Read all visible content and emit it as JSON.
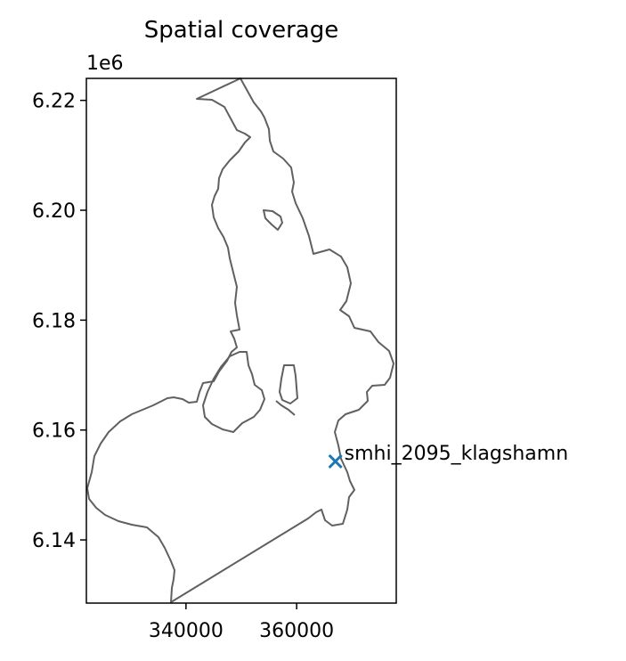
{
  "chart_data": {
    "type": "map-scatter",
    "title": "Spatial coverage",
    "xlabel": "",
    "ylabel": "",
    "offset_label": "1e6",
    "xlim": [
      322000,
      378000
    ],
    "ylim": [
      6128500,
      6224000
    ],
    "x_ticks": [
      {
        "value": 340000,
        "label": "340000"
      },
      {
        "value": 360000,
        "label": "360000"
      }
    ],
    "y_ticks": [
      {
        "value": 6140000,
        "label": "6.14"
      },
      {
        "value": 6160000,
        "label": "6.16"
      },
      {
        "value": 6180000,
        "label": "6.18"
      },
      {
        "value": 6200000,
        "label": "6.20"
      },
      {
        "value": 6220000,
        "label": "6.22"
      }
    ],
    "grid": false,
    "colors": {
      "outline": "#606060",
      "marker": "#1f77b4"
    },
    "stations": [
      {
        "name": "smhi_2095_klagshamn",
        "x": 367000,
        "y": 6154300,
        "marker": "x"
      }
    ]
  }
}
